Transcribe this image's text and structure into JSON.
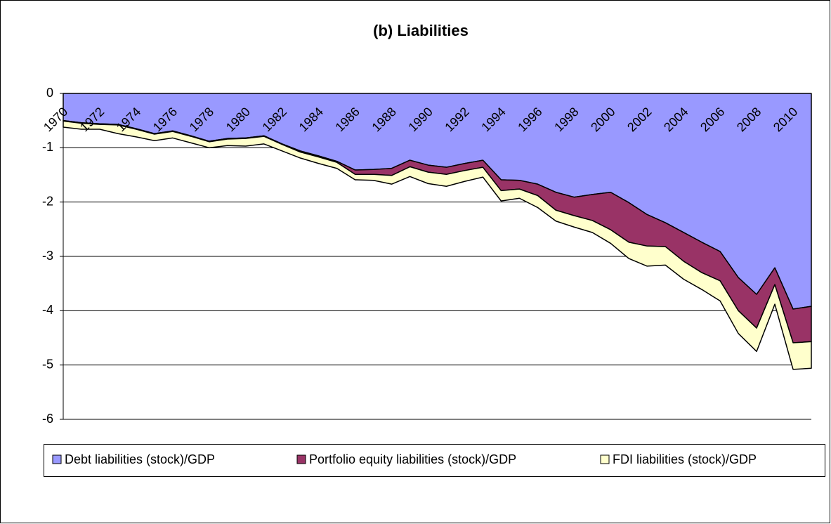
{
  "chart_data": {
    "type": "stacked_area",
    "title": "(b) Liabilities",
    "categories": [
      "1970",
      null,
      "1972",
      null,
      "1974",
      null,
      "1976",
      null,
      "1978",
      null,
      "1980",
      null,
      "1982",
      null,
      "1984",
      null,
      "1986",
      null,
      "1988",
      null,
      "1990",
      null,
      "1992",
      null,
      "1994",
      null,
      "1996",
      null,
      "1998",
      null,
      "2000",
      null,
      "2002",
      null,
      "2004",
      null,
      "2006",
      null,
      "2008",
      null,
      "2010",
      null
    ],
    "series": [
      {
        "name": "Debt liabilities (stock)/GDP",
        "color": "#9999ff",
        "values": [
          -0.5,
          -0.54,
          -0.56,
          -0.57,
          -0.65,
          -0.74,
          -0.69,
          -0.78,
          -0.88,
          -0.83,
          -0.82,
          -0.78,
          -0.93,
          -1.06,
          -1.15,
          -1.25,
          -1.41,
          -1.4,
          -1.38,
          -1.23,
          -1.32,
          -1.36,
          -1.29,
          -1.23,
          -1.59,
          -1.6,
          -1.67,
          -1.82,
          -1.91,
          -1.86,
          -1.82,
          -2.01,
          -2.23,
          -2.38,
          -2.56,
          -2.74,
          -2.91,
          -3.39,
          -3.7,
          -3.21,
          -3.97,
          -3.92
        ]
      },
      {
        "name": "Portfolio equity liabilities (stock)/GDP",
        "color": "#993366",
        "values": [
          -0.01,
          -0.01,
          -0.01,
          -0.01,
          -0.01,
          -0.01,
          -0.01,
          -0.01,
          -0.01,
          -0.01,
          -0.01,
          -0.01,
          -0.01,
          -0.02,
          -0.02,
          -0.02,
          -0.08,
          -0.09,
          -0.13,
          -0.12,
          -0.13,
          -0.13,
          -0.13,
          -0.13,
          -0.2,
          -0.16,
          -0.21,
          -0.33,
          -0.34,
          -0.48,
          -0.69,
          -0.73,
          -0.58,
          -0.44,
          -0.53,
          -0.56,
          -0.54,
          -0.61,
          -0.62,
          -0.31,
          -0.62,
          -0.65
        ]
      },
      {
        "name": "FDI liabilities (stock)/GDP",
        "color": "#ffffcc",
        "values": [
          -0.11,
          -0.11,
          -0.09,
          -0.16,
          -0.14,
          -0.12,
          -0.12,
          -0.12,
          -0.11,
          -0.12,
          -0.14,
          -0.14,
          -0.12,
          -0.11,
          -0.12,
          -0.11,
          -0.1,
          -0.11,
          -0.16,
          -0.18,
          -0.21,
          -0.22,
          -0.2,
          -0.18,
          -0.19,
          -0.17,
          -0.22,
          -0.2,
          -0.21,
          -0.22,
          -0.25,
          -0.3,
          -0.37,
          -0.34,
          -0.33,
          -0.31,
          -0.37,
          -0.42,
          -0.43,
          -0.36,
          -0.49,
          -0.49
        ]
      }
    ],
    "ylim": [
      -6,
      0
    ],
    "yticks": [
      0,
      -1,
      -2,
      -3,
      -4,
      -5,
      -6
    ],
    "grid": true,
    "legend": "bottom"
  }
}
